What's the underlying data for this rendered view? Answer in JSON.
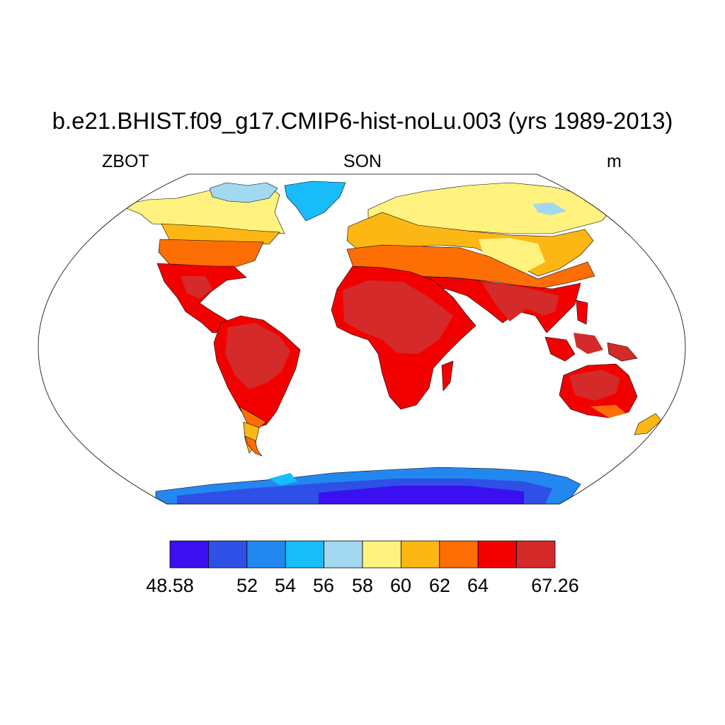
{
  "title": "b.e21.BHIST.f09_g17.CMIP6-hist-noLu.003 (yrs 1989-2013)",
  "left_label": "ZBOT",
  "center_label": "SON",
  "right_label": "m",
  "colorbar": {
    "colors": [
      "#3a10f0",
      "#2e50e6",
      "#2288f0",
      "#18bcf8",
      "#a2d8f0",
      "#fff27e",
      "#fdb714",
      "#fd6e04",
      "#f20000",
      "#d42a2a"
    ],
    "tick_labels": [
      "48.58",
      "52",
      "54",
      "56",
      "58",
      "60",
      "62",
      "64",
      "67.26"
    ]
  },
  "colors": {
    "ocean": "#ffffff",
    "outline": "#000000"
  }
}
